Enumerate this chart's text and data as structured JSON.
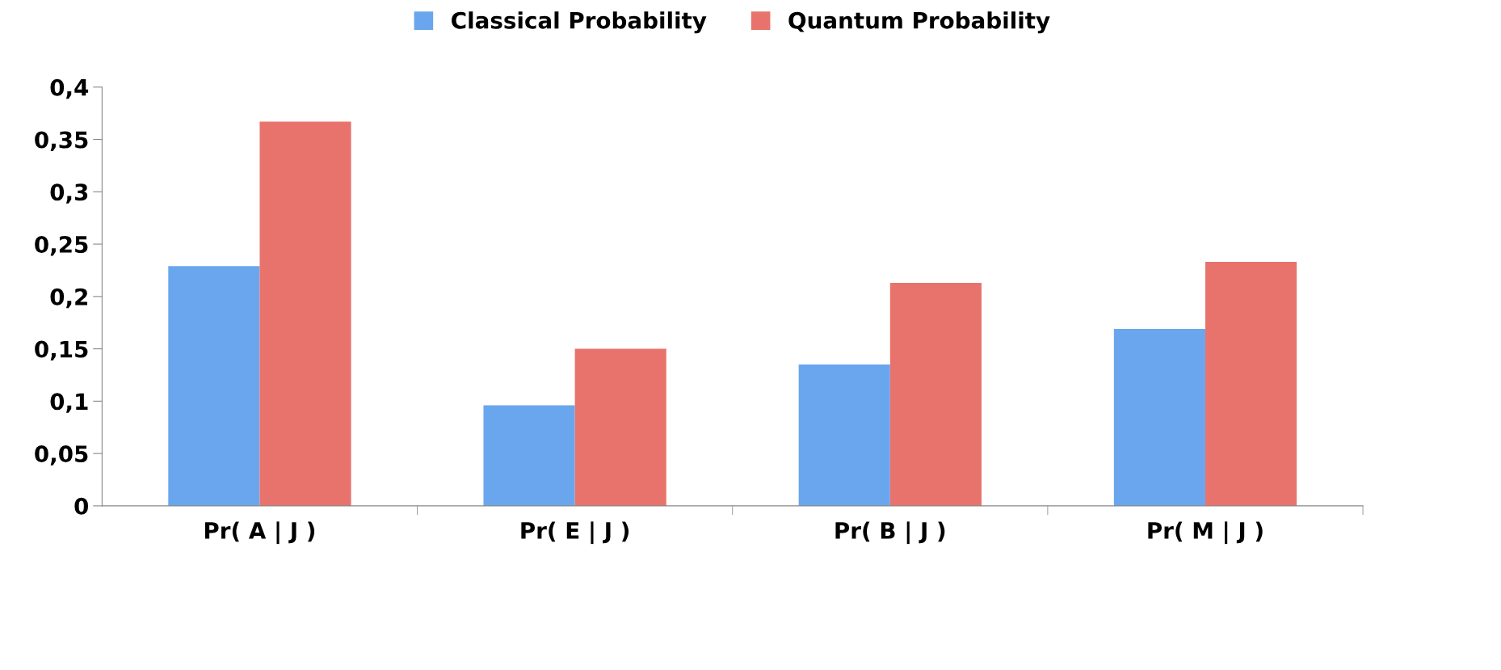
{
  "chart_data": {
    "type": "bar",
    "categories": [
      "Pr( A | J )",
      "Pr( E | J )",
      "Pr( B | J )",
      "Pr( M | J )"
    ],
    "series": [
      {
        "name": "Classical Probability",
        "color": "#6aa6ee",
        "values": [
          0.229,
          0.096,
          0.135,
          0.169
        ]
      },
      {
        "name": "Quantum Probability",
        "color": "#e8736c",
        "values": [
          0.367,
          0.15,
          0.213,
          0.233
        ]
      }
    ],
    "ylim": [
      0,
      0.4
    ],
    "yticks": [
      0,
      {
        "value": 0.05,
        "label": "0,05"
      },
      {
        "value": 0.1,
        "label": "0,1"
      },
      {
        "value": 0.15,
        "label": "0,15"
      },
      {
        "value": 0.2,
        "label": "0,2"
      },
      {
        "value": 0.25,
        "label": "0,25"
      },
      {
        "value": 0.3,
        "label": "0,3"
      },
      {
        "value": 0.35,
        "label": "0,35"
      },
      {
        "value": 0.4,
        "label": "0,4"
      }
    ],
    "grid": false,
    "legend": "top"
  }
}
